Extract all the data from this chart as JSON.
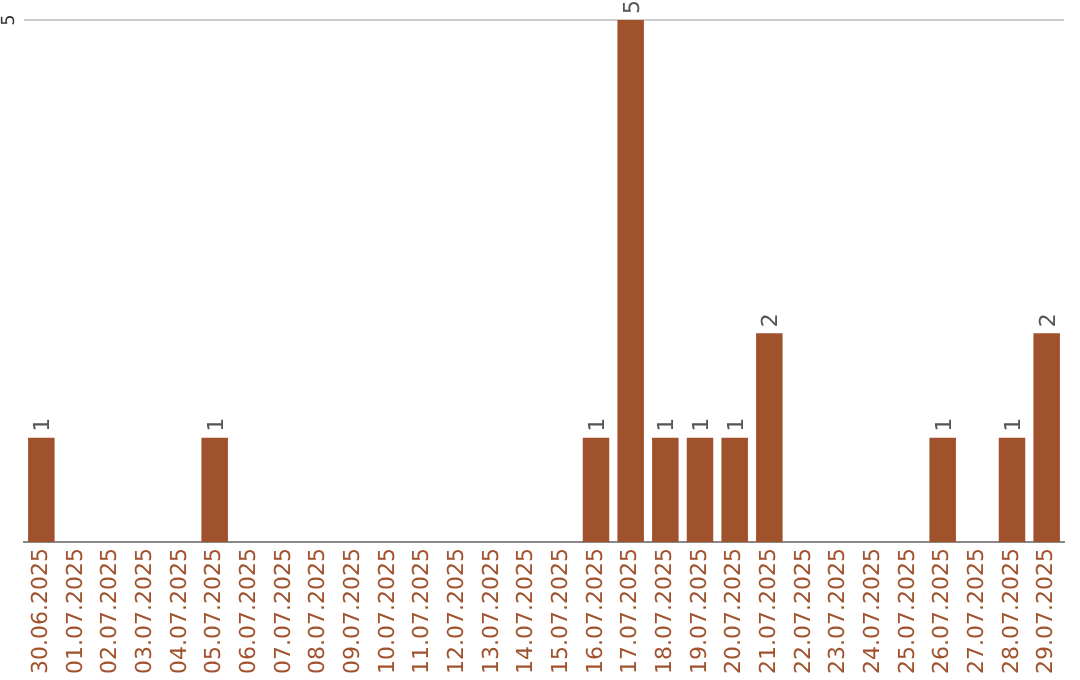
{
  "chart_data": {
    "type": "bar",
    "categories": [
      "30.06.2025",
      "01.07.2025",
      "02.07.2025",
      "03.07.2025",
      "04.07.2025",
      "05.07.2025",
      "06.07.2025",
      "07.07.2025",
      "08.07.2025",
      "09.07.2025",
      "10.07.2025",
      "11.07.2025",
      "12.07.2025",
      "13.07.2025",
      "14.07.2025",
      "15.07.2025",
      "16.07.2025",
      "17.07.2025",
      "18.07.2025",
      "19.07.2025",
      "20.07.2025",
      "21.07.2025",
      "22.07.2025",
      "23.07.2025",
      "24.07.2025",
      "25.07.2025",
      "26.07.2025",
      "27.07.2025",
      "28.07.2025",
      "29.07.2025"
    ],
    "values": [
      1,
      0,
      0,
      0,
      0,
      1,
      0,
      0,
      0,
      0,
      0,
      0,
      0,
      0,
      0,
      0,
      1,
      5,
      1,
      1,
      1,
      2,
      0,
      0,
      0,
      0,
      1,
      0,
      1,
      2
    ],
    "value_labels": [
      "1",
      null,
      null,
      null,
      null,
      "1",
      null,
      null,
      null,
      null,
      null,
      null,
      null,
      null,
      null,
      null,
      "1",
      "5",
      "1",
      "1",
      "1",
      "2",
      null,
      null,
      null,
      null,
      "1",
      null,
      "1",
      "2"
    ],
    "color": "#a0522d",
    "ref_lines": [
      {
        "axis": "y",
        "value": 5,
        "label": "5",
        "color": "#cccccc"
      }
    ],
    "legend": false
  }
}
